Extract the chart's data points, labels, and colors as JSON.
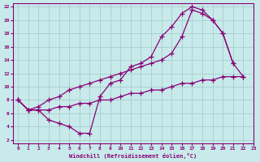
{
  "xlabel": "Windchill (Refroidissement éolien,°C)",
  "ylabel": "",
  "bg_color": "#c8eaea",
  "line_color": "#880077",
  "grid_color": "#a0c8c8",
  "xlim": [
    -0.5,
    23
  ],
  "ylim": [
    1.5,
    22.5
  ],
  "xticks": [
    0,
    1,
    2,
    3,
    4,
    5,
    6,
    7,
    8,
    9,
    10,
    11,
    12,
    13,
    14,
    15,
    16,
    17,
    18,
    19,
    20,
    21,
    22,
    23
  ],
  "yticks": [
    2,
    4,
    6,
    8,
    10,
    12,
    14,
    16,
    18,
    20,
    22
  ],
  "line1_x": [
    0,
    1,
    2,
    3,
    4,
    5,
    6,
    7,
    8,
    9,
    10,
    11,
    12,
    13,
    14,
    15,
    16,
    17,
    18,
    19,
    20,
    21,
    22
  ],
  "line1_y": [
    8.0,
    6.5,
    6.5,
    5.0,
    4.5,
    4.0,
    3.0,
    3.0,
    8.5,
    10.5,
    11.0,
    13.0,
    13.5,
    14.5,
    17.5,
    19.0,
    21.0,
    22.0,
    21.5,
    20.0,
    18.0,
    13.5,
    11.5
  ],
  "line2_x": [
    0,
    1,
    2,
    3,
    4,
    5,
    6,
    7,
    8,
    9,
    10,
    11,
    12,
    13,
    14,
    15,
    16,
    17,
    18,
    19,
    20,
    21
  ],
  "line2_y": [
    8.0,
    6.5,
    7.0,
    8.0,
    8.5,
    9.5,
    10.0,
    10.5,
    11.0,
    11.5,
    12.0,
    12.5,
    13.0,
    13.5,
    14.0,
    15.0,
    17.5,
    21.5,
    21.0,
    20.0,
    18.0,
    13.5
  ],
  "line3_x": [
    0,
    1,
    2,
    3,
    4,
    5,
    6,
    7,
    8,
    9,
    10,
    11,
    12,
    13,
    14,
    15,
    16,
    17,
    18,
    19,
    20,
    21,
    22
  ],
  "line3_y": [
    8.0,
    6.5,
    6.5,
    6.5,
    7.0,
    7.0,
    7.5,
    7.5,
    8.0,
    8.0,
    8.5,
    9.0,
    9.0,
    9.5,
    9.5,
    10.0,
    10.5,
    10.5,
    11.0,
    11.0,
    11.5,
    11.5,
    11.5
  ]
}
